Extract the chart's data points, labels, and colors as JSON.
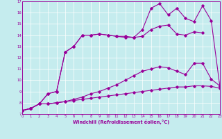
{
  "xlabel": "Windchill (Refroidissement éolien,°C)",
  "xlim": [
    0,
    23
  ],
  "ylim": [
    7,
    17
  ],
  "xticks": [
    0,
    1,
    2,
    3,
    4,
    5,
    6,
    7,
    8,
    9,
    10,
    11,
    12,
    13,
    14,
    15,
    16,
    17,
    18,
    19,
    20,
    21,
    22,
    23
  ],
  "yticks": [
    7,
    8,
    9,
    10,
    11,
    12,
    13,
    14,
    15,
    16,
    17
  ],
  "background_color": "#c5ecee",
  "line_color": "#990099",
  "grid_color": "#ffffff",
  "line1_x": [
    0,
    1,
    2,
    3,
    4,
    5,
    6,
    7,
    8,
    9,
    10,
    11,
    12,
    13,
    14,
    15,
    16,
    17,
    18,
    19,
    20,
    21,
    22,
    23
  ],
  "line1_y": [
    7.3,
    7.5,
    7.9,
    7.9,
    8.0,
    8.1,
    8.2,
    8.3,
    8.4,
    8.5,
    8.6,
    8.7,
    8.8,
    8.9,
    9.0,
    9.1,
    9.2,
    9.3,
    9.4,
    9.4,
    9.5,
    9.5,
    9.45,
    9.3
  ],
  "line2_x": [
    0,
    1,
    2,
    3,
    4,
    5,
    6,
    7,
    8,
    9,
    10,
    11,
    12,
    13,
    14,
    15,
    16,
    17,
    18,
    19,
    20,
    21,
    22,
    23
  ],
  "line2_y": [
    7.3,
    7.5,
    7.9,
    7.9,
    8.0,
    8.1,
    8.3,
    8.5,
    8.8,
    9.0,
    9.3,
    9.6,
    10.0,
    10.4,
    10.8,
    11.0,
    11.2,
    11.1,
    10.8,
    10.5,
    11.5,
    11.5,
    10.1,
    9.5
  ],
  "line3_x": [
    0,
    1,
    2,
    3,
    4,
    5,
    6,
    7,
    8,
    9,
    10,
    11,
    12,
    13,
    14,
    15,
    16,
    17,
    18,
    19,
    20,
    21
  ],
  "line3_y": [
    7.3,
    7.5,
    7.9,
    8.8,
    9.0,
    12.5,
    13.0,
    14.0,
    14.0,
    14.1,
    14.0,
    13.9,
    13.9,
    13.8,
    13.9,
    14.5,
    14.8,
    14.9,
    14.1,
    14.0,
    14.3,
    14.2
  ],
  "line4_x": [
    0,
    1,
    2,
    3,
    4,
    5,
    6,
    7,
    8,
    9,
    10,
    11,
    12,
    13,
    14,
    15,
    16,
    17,
    18,
    19,
    20,
    21,
    22,
    23
  ],
  "line4_y": [
    7.3,
    7.5,
    7.9,
    8.8,
    9.0,
    12.5,
    13.0,
    14.0,
    14.0,
    14.1,
    14.0,
    13.9,
    13.8,
    13.8,
    14.5,
    16.4,
    16.8,
    15.8,
    16.4,
    15.5,
    15.2,
    16.6,
    15.3,
    9.5
  ]
}
